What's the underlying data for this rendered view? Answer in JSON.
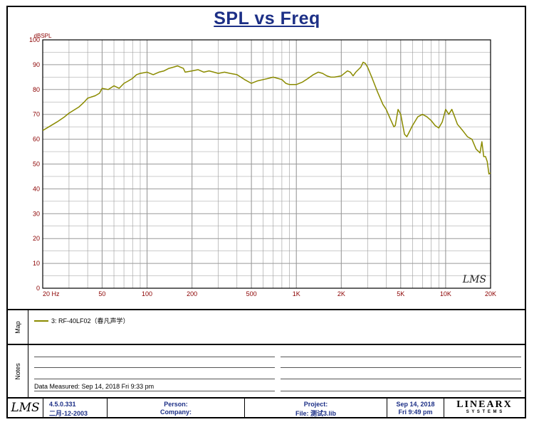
{
  "chart_title": "SPL vs Freq",
  "chart_data": {
    "type": "line",
    "title": "SPL vs Freq",
    "ylabel": "dBSPL",
    "xlabel": "",
    "x_scale": "log",
    "xlim": [
      20,
      20000
    ],
    "ylim": [
      0,
      100
    ],
    "grid": true,
    "y_ticks": [
      "0",
      "10",
      "20",
      "30",
      "40",
      "50",
      "60",
      "70",
      "80",
      "90",
      "100"
    ],
    "x_tick_labels": [
      {
        "value": 20,
        "label": "20 Hz"
      },
      {
        "value": 50,
        "label": "50"
      },
      {
        "value": 100,
        "label": "100"
      },
      {
        "value": 200,
        "label": "200"
      },
      {
        "value": 500,
        "label": "500"
      },
      {
        "value": 1000,
        "label": "1K"
      },
      {
        "value": 2000,
        "label": "2K"
      },
      {
        "value": 5000,
        "label": "5K"
      },
      {
        "value": 10000,
        "label": "10K"
      },
      {
        "value": 20000,
        "label": "20K"
      }
    ],
    "series": [
      {
        "name": "3: RF-40LF02（春凡声学）",
        "color": "#8b8b00",
        "points": [
          [
            20,
            63.5
          ],
          [
            22,
            65
          ],
          [
            25,
            67
          ],
          [
            28,
            69
          ],
          [
            30,
            70.5
          ],
          [
            35,
            73
          ],
          [
            38,
            75
          ],
          [
            40,
            76.5
          ],
          [
            45,
            77.5
          ],
          [
            48,
            78.5
          ],
          [
            50,
            80.5
          ],
          [
            55,
            80
          ],
          [
            60,
            81.5
          ],
          [
            65,
            80.5
          ],
          [
            70,
            82.5
          ],
          [
            75,
            83.5
          ],
          [
            80,
            84.5
          ],
          [
            85,
            86
          ],
          [
            90,
            86.5
          ],
          [
            100,
            87
          ],
          [
            110,
            86
          ],
          [
            120,
            87
          ],
          [
            130,
            87.5
          ],
          [
            140,
            88.5
          ],
          [
            150,
            89
          ],
          [
            160,
            89.5
          ],
          [
            175,
            88.5
          ],
          [
            180,
            87
          ],
          [
            200,
            87.5
          ],
          [
            220,
            88
          ],
          [
            240,
            87
          ],
          [
            260,
            87.5
          ],
          [
            280,
            87
          ],
          [
            300,
            86.5
          ],
          [
            330,
            87
          ],
          [
            360,
            86.5
          ],
          [
            400,
            86
          ],
          [
            450,
            84
          ],
          [
            500,
            82.5
          ],
          [
            550,
            83.5
          ],
          [
            600,
            84
          ],
          [
            650,
            84.5
          ],
          [
            700,
            85
          ],
          [
            750,
            84.5
          ],
          [
            800,
            84
          ],
          [
            850,
            82.5
          ],
          [
            900,
            82
          ],
          [
            1000,
            82
          ],
          [
            1100,
            83
          ],
          [
            1200,
            84.5
          ],
          [
            1300,
            86
          ],
          [
            1400,
            87
          ],
          [
            1500,
            86.5
          ],
          [
            1600,
            85.5
          ],
          [
            1700,
            85
          ],
          [
            1800,
            85
          ],
          [
            2000,
            85.5
          ],
          [
            2200,
            87.5
          ],
          [
            2300,
            87
          ],
          [
            2400,
            85.5
          ],
          [
            2500,
            87
          ],
          [
            2700,
            89
          ],
          [
            2800,
            91
          ],
          [
            2900,
            90.5
          ],
          [
            3000,
            89
          ],
          [
            3200,
            85
          ],
          [
            3500,
            79
          ],
          [
            3800,
            74
          ],
          [
            4000,
            72
          ],
          [
            4200,
            69
          ],
          [
            4500,
            65
          ],
          [
            4600,
            65.5
          ],
          [
            4800,
            72
          ],
          [
            5000,
            70
          ],
          [
            5300,
            62
          ],
          [
            5500,
            61
          ],
          [
            6000,
            65.5
          ],
          [
            6500,
            69
          ],
          [
            7000,
            70
          ],
          [
            7500,
            69
          ],
          [
            8000,
            67.5
          ],
          [
            8500,
            65.5
          ],
          [
            9000,
            64.5
          ],
          [
            9500,
            67
          ],
          [
            10000,
            72
          ],
          [
            10500,
            70
          ],
          [
            11000,
            72
          ],
          [
            11500,
            69
          ],
          [
            12000,
            66
          ],
          [
            13000,
            63.5
          ],
          [
            14000,
            61
          ],
          [
            15000,
            60
          ],
          [
            16000,
            56
          ],
          [
            17000,
            54.5
          ],
          [
            17500,
            59
          ],
          [
            18000,
            53
          ],
          [
            18500,
            53
          ],
          [
            19000,
            51
          ],
          [
            19500,
            46
          ],
          [
            20000,
            46.5
          ]
        ]
      }
    ]
  },
  "watermark_logo": "LMS",
  "panels": {
    "map_label": "Map",
    "notes_label": "Notes"
  },
  "legend": {
    "entry": "3: RF-40LF02（春凡声学）"
  },
  "notes": {
    "data_measured": "Data Measured: Sep 14, 2018  Fri  9:33 pm"
  },
  "footer": {
    "logo": "LMS",
    "version": "4.5.0.331",
    "build_date": "二月-12-2003",
    "person_label": "Person:",
    "company_label": "Company:",
    "project_label": "Project:",
    "file_label": "File: 测试3.lib",
    "date": "Sep 14, 2018",
    "time": "Fri  9:49 pm",
    "brand": "LINEARX",
    "brand_sub": "S Y S T E M S"
  },
  "colors": {
    "title": "#1c2f86",
    "curve": "#8b8b00",
    "tick_labels": "#8b0000",
    "grid": "#9a9a9a"
  }
}
